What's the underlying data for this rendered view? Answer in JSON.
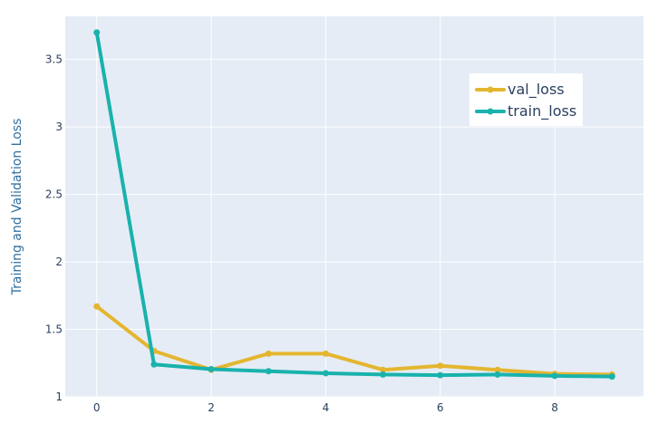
{
  "chart_data": {
    "type": "line",
    "title": "",
    "xlabel": "",
    "ylabel": "Training and Validation Loss",
    "x": [
      0,
      1,
      2,
      3,
      4,
      5,
      6,
      7,
      8,
      9
    ],
    "xlim": [
      -0.55,
      9.55
    ],
    "ylim": [
      1.0,
      3.82
    ],
    "x_ticks": [
      0,
      2,
      4,
      6,
      8
    ],
    "x_tick_labels": [
      "0",
      "2",
      "4",
      "6",
      "8"
    ],
    "y_ticks": [
      1,
      1.5,
      2,
      2.5,
      3,
      3.5
    ],
    "y_tick_labels": [
      "1",
      "1.5",
      "2",
      "2.5",
      "3",
      "3.5"
    ],
    "grid": true,
    "legend_position": "top-right",
    "series": [
      {
        "name": "val_loss",
        "color": "#e4b62f",
        "values": [
          1.67,
          1.34,
          1.2,
          1.32,
          1.32,
          1.2,
          1.23,
          1.2,
          1.17,
          1.165
        ]
      },
      {
        "name": "train_loss",
        "color": "#19b2ac",
        "values": [
          3.7,
          1.24,
          1.205,
          1.19,
          1.175,
          1.165,
          1.16,
          1.165,
          1.155,
          1.15
        ]
      }
    ],
    "colors": {
      "plot_background": "#e5ecf6",
      "grid": "#ffffff",
      "axis_text": "#2a3f5f",
      "ylabel": "#2f6f9f",
      "legend_background": "#ffffff"
    }
  }
}
